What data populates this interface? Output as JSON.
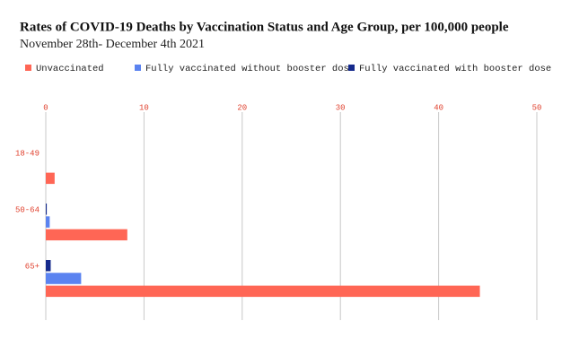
{
  "chart_data": {
    "type": "hbar",
    "title": "Rates of COVID-19 Deaths by Vaccination Status and Age Group, per 100,000 people",
    "subtitle": "November 28th- December 4th 2021",
    "categories": [
      "18-49",
      "50-64",
      "65+"
    ],
    "series": [
      {
        "name": "Unvaccinated",
        "color": "#ff6655",
        "values": [
          0.9,
          8.3,
          44.2
        ]
      },
      {
        "name": "Fully vaccinated without booster dose",
        "color": "#5b83f0",
        "values": [
          0,
          0.4,
          3.6
        ]
      },
      {
        "name": "Fully vaccinated with booster dose",
        "color": "#152a8c",
        "values": [
          0,
          0.1,
          0.5
        ]
      }
    ],
    "xlim": [
      0,
      50
    ],
    "xticks": [
      0,
      10,
      20,
      30,
      40,
      50
    ],
    "grid": true
  }
}
